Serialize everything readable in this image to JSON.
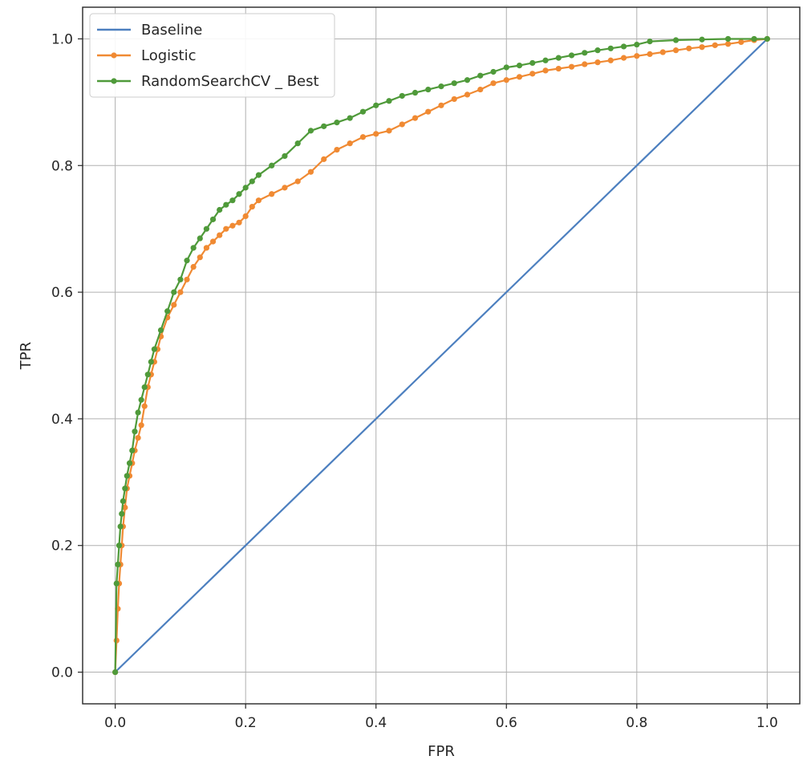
{
  "chart_data": {
    "type": "line",
    "title": "",
    "xlabel": "FPR",
    "ylabel": "TPR",
    "xlim": [
      -0.05,
      1.05
    ],
    "ylim": [
      -0.05,
      1.05
    ],
    "xticks": [
      "0.0",
      "0.2",
      "0.4",
      "0.6",
      "0.8",
      "1.0"
    ],
    "yticks": [
      "0.0",
      "0.2",
      "0.4",
      "0.6",
      "0.8",
      "1.0"
    ],
    "grid": true,
    "legend_position": "top-left",
    "series": [
      {
        "name": "Baseline",
        "color": "#4c7fbf",
        "marker": false,
        "x": [
          0.0,
          1.0
        ],
        "y": [
          0.0,
          1.0
        ]
      },
      {
        "name": "Logistic",
        "color": "#f08a33",
        "marker": true,
        "x": [
          0.0,
          0.002,
          0.004,
          0.006,
          0.008,
          0.01,
          0.012,
          0.015,
          0.018,
          0.022,
          0.026,
          0.03,
          0.035,
          0.04,
          0.045,
          0.05,
          0.055,
          0.06,
          0.065,
          0.07,
          0.08,
          0.09,
          0.1,
          0.11,
          0.12,
          0.13,
          0.14,
          0.15,
          0.16,
          0.17,
          0.18,
          0.19,
          0.2,
          0.21,
          0.22,
          0.24,
          0.26,
          0.28,
          0.3,
          0.32,
          0.34,
          0.36,
          0.38,
          0.4,
          0.42,
          0.44,
          0.46,
          0.48,
          0.5,
          0.52,
          0.54,
          0.56,
          0.58,
          0.6,
          0.62,
          0.64,
          0.66,
          0.68,
          0.7,
          0.72,
          0.74,
          0.76,
          0.78,
          0.8,
          0.82,
          0.84,
          0.86,
          0.88,
          0.9,
          0.92,
          0.94,
          0.96,
          0.98,
          1.0
        ],
        "y": [
          0.0,
          0.05,
          0.1,
          0.14,
          0.17,
          0.2,
          0.23,
          0.26,
          0.29,
          0.31,
          0.33,
          0.35,
          0.37,
          0.39,
          0.42,
          0.45,
          0.47,
          0.49,
          0.51,
          0.53,
          0.56,
          0.58,
          0.6,
          0.62,
          0.64,
          0.655,
          0.67,
          0.68,
          0.69,
          0.7,
          0.705,
          0.71,
          0.72,
          0.735,
          0.745,
          0.755,
          0.765,
          0.775,
          0.79,
          0.81,
          0.825,
          0.835,
          0.845,
          0.85,
          0.855,
          0.865,
          0.875,
          0.885,
          0.895,
          0.905,
          0.912,
          0.92,
          0.93,
          0.935,
          0.94,
          0.945,
          0.95,
          0.953,
          0.956,
          0.96,
          0.963,
          0.966,
          0.97,
          0.973,
          0.976,
          0.979,
          0.982,
          0.985,
          0.987,
          0.99,
          0.992,
          0.995,
          0.998,
          1.0
        ]
      },
      {
        "name": "RandomSearchCV _ Best",
        "color": "#4f9a3a",
        "marker": true,
        "x": [
          0.0,
          0.002,
          0.004,
          0.006,
          0.008,
          0.01,
          0.012,
          0.015,
          0.018,
          0.022,
          0.026,
          0.03,
          0.035,
          0.04,
          0.045,
          0.05,
          0.055,
          0.06,
          0.07,
          0.08,
          0.09,
          0.1,
          0.11,
          0.12,
          0.13,
          0.14,
          0.15,
          0.16,
          0.17,
          0.18,
          0.19,
          0.2,
          0.21,
          0.22,
          0.24,
          0.26,
          0.28,
          0.3,
          0.32,
          0.34,
          0.36,
          0.38,
          0.4,
          0.42,
          0.44,
          0.46,
          0.48,
          0.5,
          0.52,
          0.54,
          0.56,
          0.58,
          0.6,
          0.62,
          0.64,
          0.66,
          0.68,
          0.7,
          0.72,
          0.74,
          0.76,
          0.78,
          0.8,
          0.82,
          0.86,
          0.9,
          0.94,
          0.98,
          1.0
        ],
        "y": [
          0.0,
          0.14,
          0.17,
          0.2,
          0.23,
          0.25,
          0.27,
          0.29,
          0.31,
          0.33,
          0.35,
          0.38,
          0.41,
          0.43,
          0.45,
          0.47,
          0.49,
          0.51,
          0.54,
          0.57,
          0.6,
          0.62,
          0.65,
          0.67,
          0.685,
          0.7,
          0.715,
          0.73,
          0.738,
          0.745,
          0.755,
          0.765,
          0.775,
          0.785,
          0.8,
          0.815,
          0.835,
          0.855,
          0.862,
          0.868,
          0.875,
          0.885,
          0.895,
          0.902,
          0.91,
          0.915,
          0.92,
          0.925,
          0.93,
          0.935,
          0.942,
          0.948,
          0.955,
          0.958,
          0.962,
          0.966,
          0.97,
          0.974,
          0.978,
          0.982,
          0.985,
          0.988,
          0.991,
          0.996,
          0.998,
          0.999,
          1.0,
          1.0,
          1.0
        ]
      }
    ]
  }
}
